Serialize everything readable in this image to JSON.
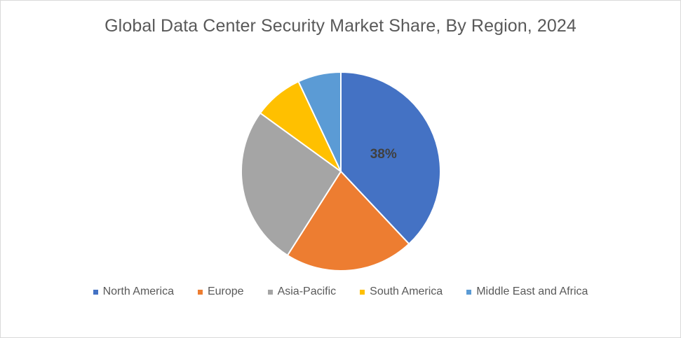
{
  "chart_data": {
    "type": "pie",
    "title": "Global Data Center Security Market Share, By Region, 2024",
    "categories": [
      "North America",
      "Europe",
      "Asia-Pacific",
      "South America",
      "Middle East and Africa"
    ],
    "values": [
      38,
      21,
      26,
      8,
      7
    ],
    "colors": [
      "#4472C4",
      "#ED7D31",
      "#A5A5A5",
      "#FFC000",
      "#5B9BD5"
    ],
    "data_labels": [
      "38%",
      "",
      "",
      "",
      ""
    ],
    "legend_position": "bottom"
  }
}
